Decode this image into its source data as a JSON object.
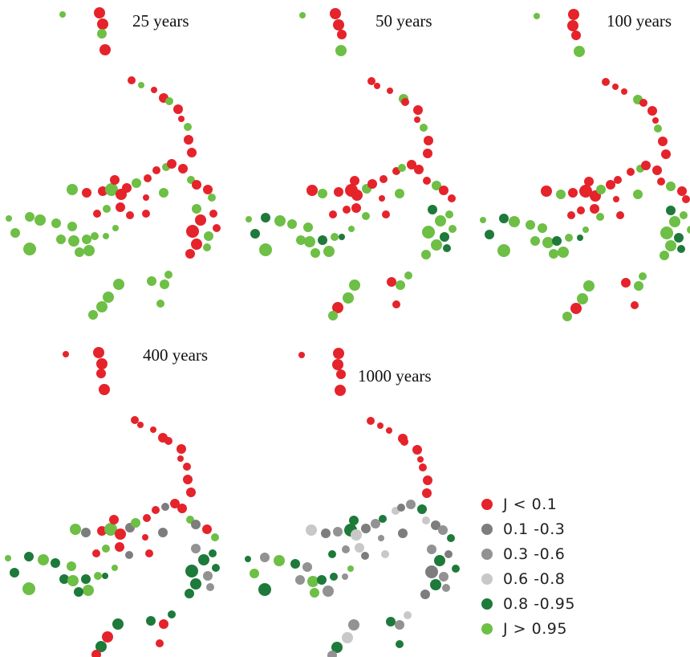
{
  "colors": {
    "red": "#e5232b",
    "gray_dark": "#7d7d7d",
    "gray_mid": "#929292",
    "gray_light": "#c8c8c8",
    "green_dark": "#1e7a3a",
    "green_light": "#6dbf45"
  },
  "panels": [
    {
      "title": "25 years",
      "palette": "red-light"
    },
    {
      "title": "50 years",
      "palette": "red-light-some-dark"
    },
    {
      "title": "100 years",
      "palette": "red-light-some-dark"
    },
    {
      "title": "400 years",
      "palette": "mixed-dark"
    },
    {
      "title": "1000 years",
      "palette": "mostly-gray-dark"
    }
  ],
  "legend": {
    "items": [
      {
        "label": "J < 0.1",
        "color": "#e5232b"
      },
      {
        "label": "0.1 -0.3",
        "color": "#7d7d7d"
      },
      {
        "label": "0.3 -0.6",
        "color": "#929292"
      },
      {
        "label": "0.6 -0.8",
        "color": "#c8c8c8"
      },
      {
        "label": "0.8 -0.95",
        "color": "#1e7a3a"
      },
      {
        "label": "J > 0.95",
        "color": "#6dbf45"
      }
    ]
  }
}
